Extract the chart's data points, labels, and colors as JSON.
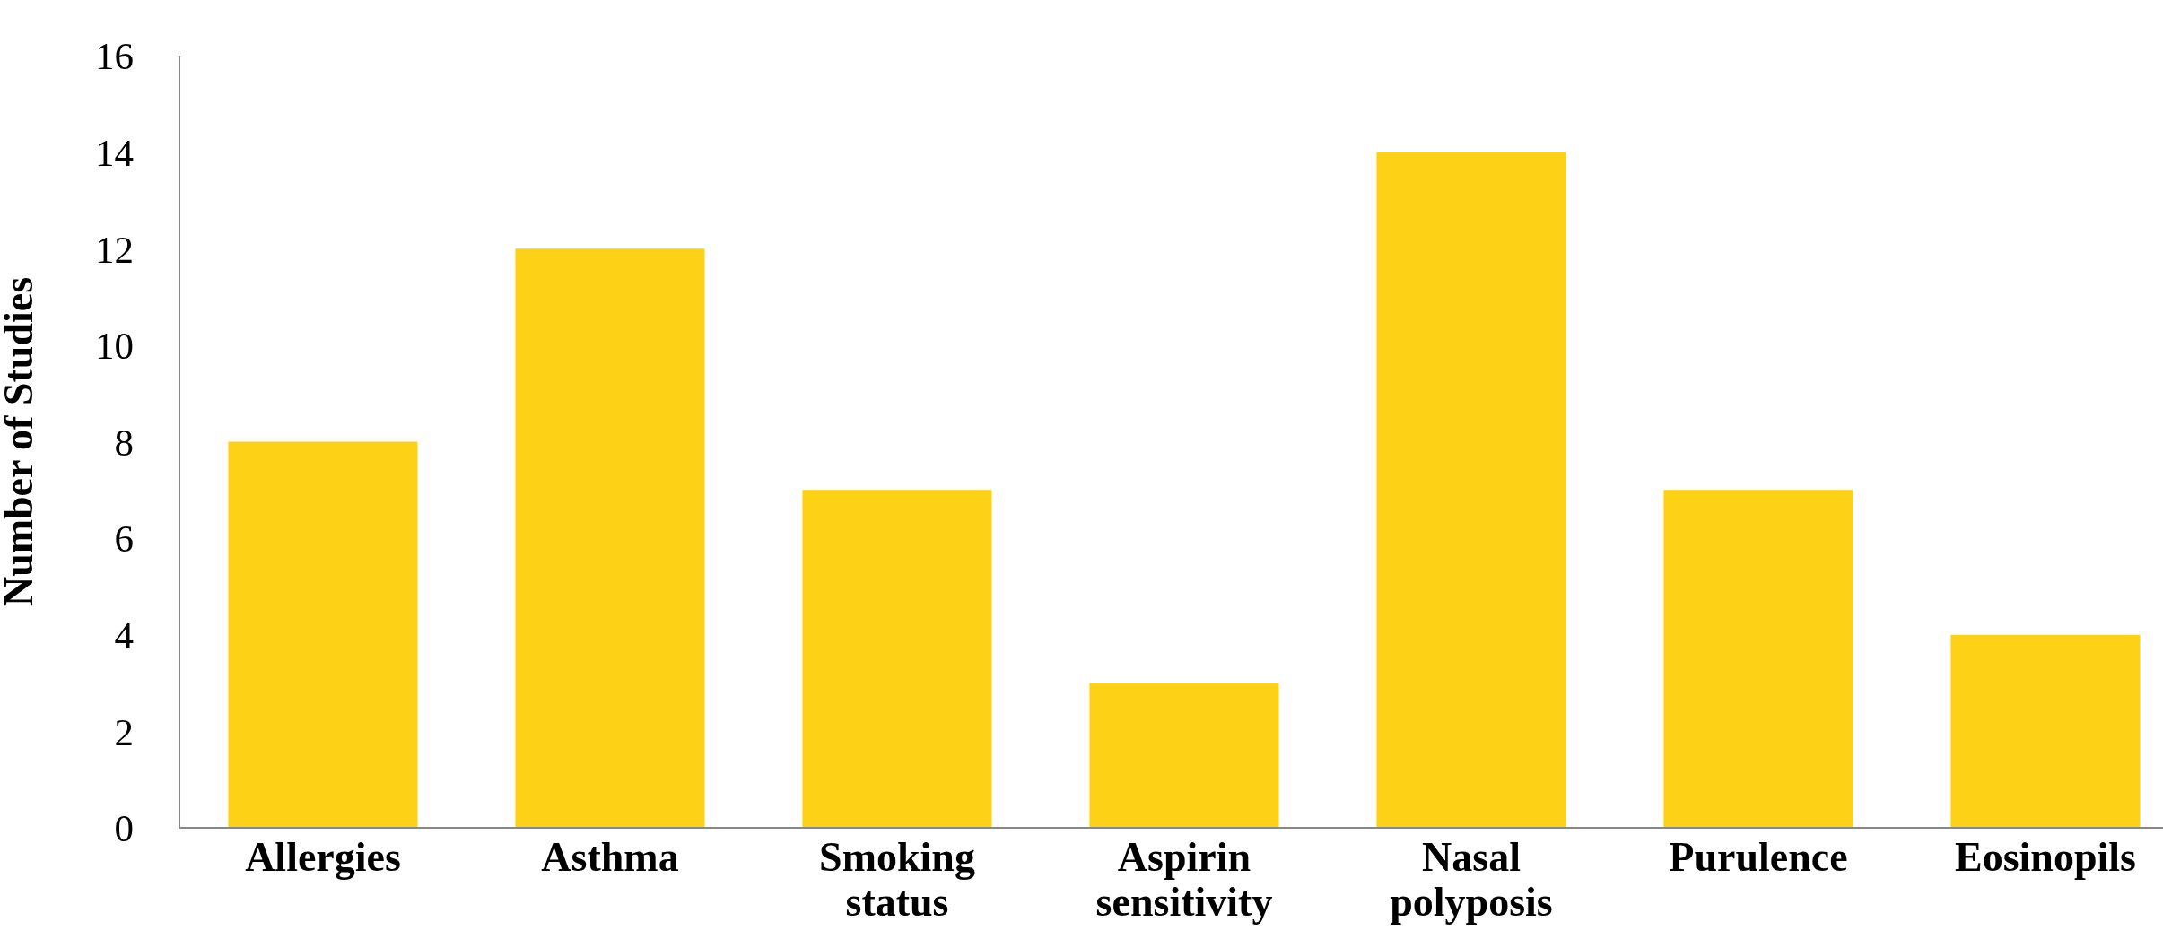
{
  "chart_data": {
    "type": "bar",
    "ylabel": "Number of Studies",
    "categories": [
      "Allergies",
      "Asthma",
      "Smoking status",
      "Aspirin sensitivity",
      "Nasal polyposis",
      "Purulence",
      "Eosinopils"
    ],
    "values": [
      8,
      12,
      7,
      3,
      14,
      7,
      4
    ],
    "color": "#fcd116",
    "ylim": [
      0,
      16
    ],
    "yticks": [
      0,
      2,
      4,
      6,
      8,
      10,
      12,
      14,
      16
    ],
    "grid": false
  }
}
